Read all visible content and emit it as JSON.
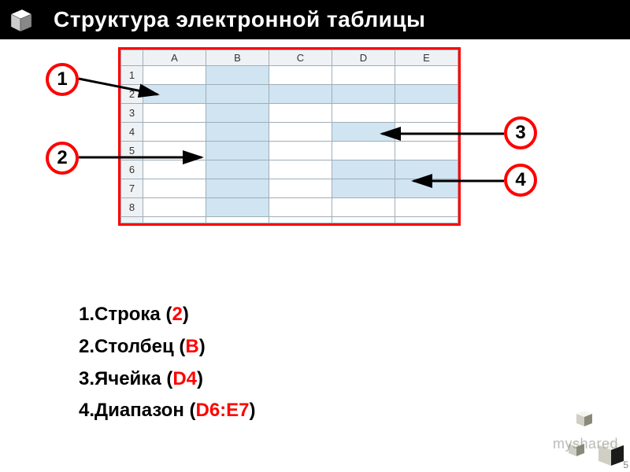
{
  "header": {
    "title": "Структура электронной таблицы"
  },
  "spreadsheet": {
    "columns": [
      "A",
      "B",
      "C",
      "D",
      "E"
    ],
    "rows": [
      "1",
      "2",
      "3",
      "4",
      "5",
      "6",
      "7",
      "8"
    ],
    "highlight_cells": [
      [
        1,
        0
      ],
      [
        1,
        1
      ],
      [
        1,
        2
      ],
      [
        1,
        3
      ],
      [
        1,
        4
      ],
      [
        0,
        1
      ],
      [
        2,
        1
      ],
      [
        3,
        1
      ],
      [
        4,
        1
      ],
      [
        5,
        1
      ],
      [
        6,
        1
      ],
      [
        7,
        1
      ],
      [
        3,
        3
      ],
      [
        5,
        3
      ],
      [
        5,
        4
      ],
      [
        6,
        3
      ],
      [
        6,
        4
      ]
    ],
    "border_color": "#ff0000",
    "highlight_color": "#d0e4f2",
    "grid_color": "#9faeb8",
    "header_bg": "#eef2f5"
  },
  "labels": {
    "l1": "1",
    "l2": "2",
    "l3": "3",
    "l4": "4"
  },
  "legend": {
    "i1_pre": "1.Строка (",
    "i1_hl": "2",
    "i1_post": ")",
    "i2_pre": "2.Столбец (",
    "i2_hl": "B",
    "i2_post": ")",
    "i3_pre": "3.Ячейка (",
    "i3_hl": "D4",
    "i3_post": ")",
    "i4_pre": "4.Диапазон (",
    "i4_hl": "D6:E7",
    "i4_post": ")"
  },
  "footer": {
    "search": "myshared",
    "slide": "5"
  },
  "colors": {
    "accent": "#ff0000",
    "black": "#000000"
  }
}
